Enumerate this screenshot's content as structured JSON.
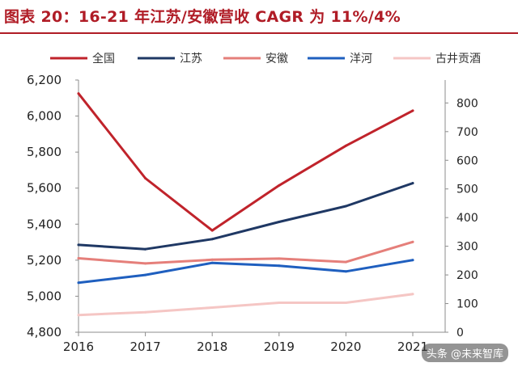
{
  "title": "图表 20：16-21 年江苏/安徽营收 CAGR 为 11%/4%",
  "watermark": "头条 @未来智库",
  "chart_data": {
    "type": "line",
    "categories": [
      "2016",
      "2017",
      "2018",
      "2019",
      "2020",
      "2021"
    ],
    "left_axis": {
      "ylim": [
        4800,
        6200
      ],
      "ticks": [
        "4,800",
        "5,000",
        "5,200",
        "5,400",
        "5,600",
        "5,800",
        "6,000",
        "6,200"
      ]
    },
    "right_axis": {
      "ylim": [
        0,
        880
      ],
      "ticks": [
        "0",
        "100",
        "200",
        "300",
        "400",
        "500",
        "600",
        "700",
        "800"
      ]
    },
    "legend_position": "top",
    "grid": false,
    "series": [
      {
        "name": "全国",
        "axis": "left",
        "color": "#c0232b",
        "values": [
          6125,
          5655,
          5365,
          5615,
          5835,
          6030
        ]
      },
      {
        "name": "江苏",
        "axis": "right",
        "color": "#1f3864",
        "values": [
          305,
          290,
          325,
          385,
          440,
          520
        ]
      },
      {
        "name": "安徽",
        "axis": "right",
        "color": "#e57f7a",
        "values": [
          258,
          240,
          253,
          257,
          245,
          315
        ]
      },
      {
        "name": "洋河",
        "axis": "right",
        "color": "#1f5fbf",
        "values": [
          173,
          200,
          242,
          232,
          212,
          252
        ]
      },
      {
        "name": "古井贡酒",
        "axis": "right",
        "color": "#f5c6c4",
        "values": [
          60,
          70,
          86,
          103,
          103,
          133
        ]
      }
    ]
  }
}
